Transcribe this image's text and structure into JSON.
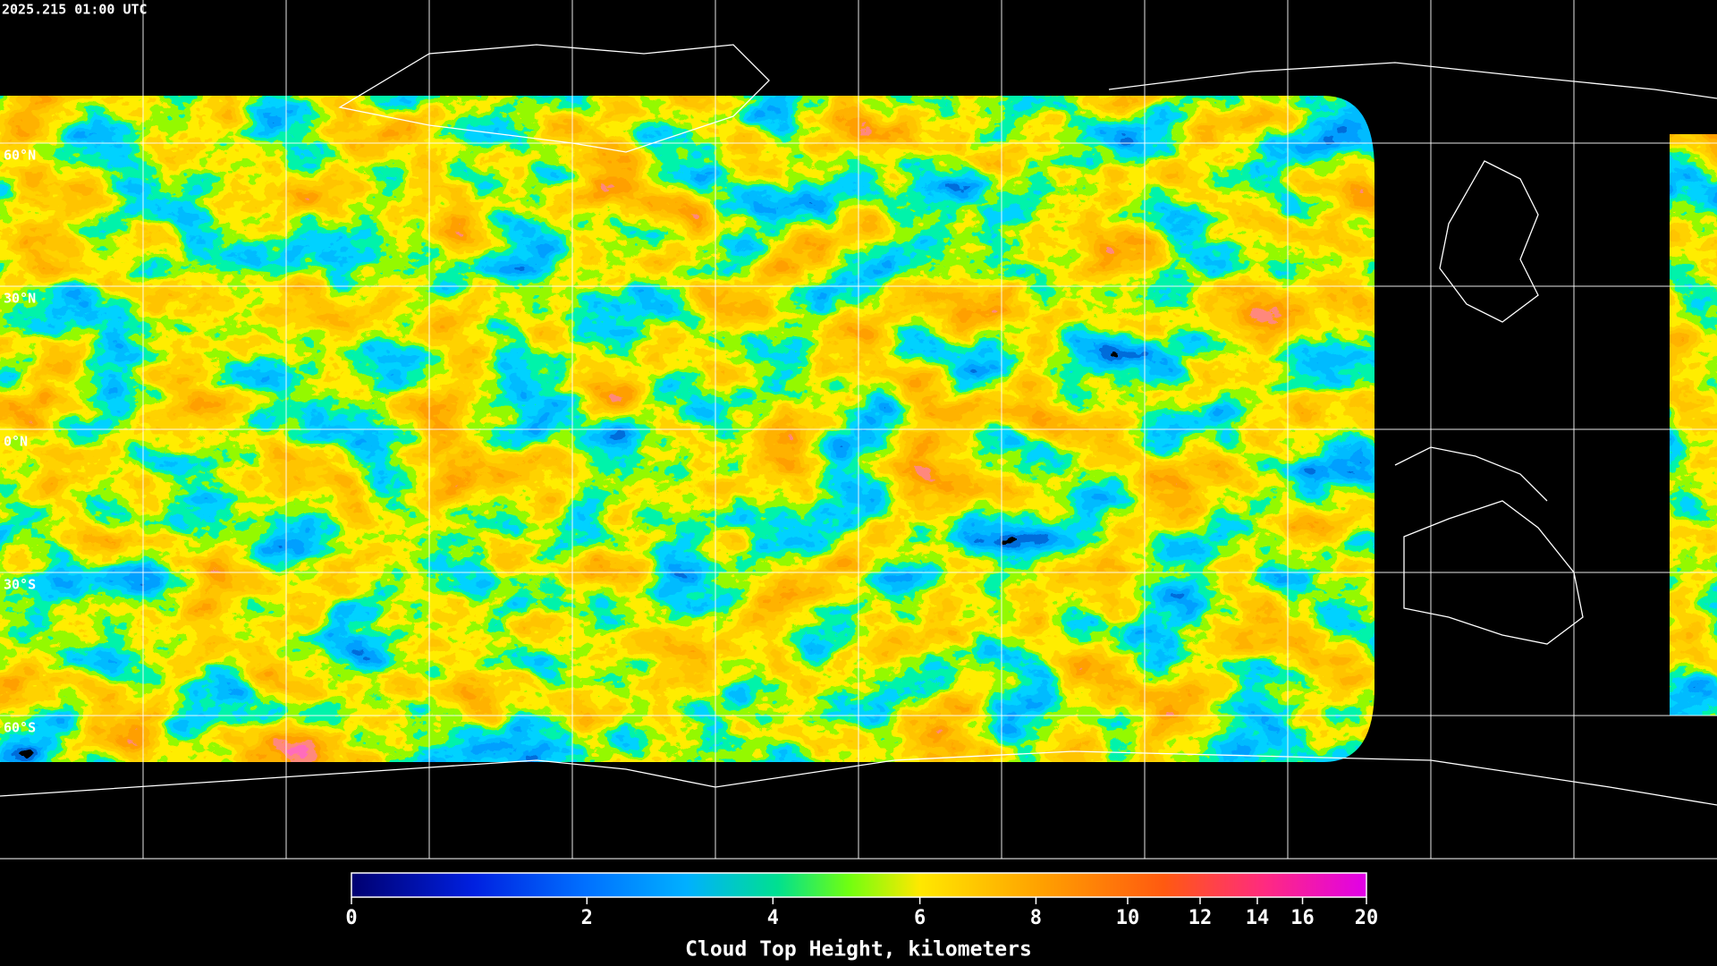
{
  "timestamp": "2025.215 01:00 UTC",
  "latitude_labels": [
    "60°N",
    "30°N",
    "0°N",
    "30°S",
    "60°S"
  ],
  "colorbar": {
    "title": "Cloud Top Height, kilometers",
    "lim": [
      0,
      20
    ],
    "ticks": [
      0,
      2,
      4,
      6,
      8,
      10,
      12,
      14,
      16,
      20
    ]
  }
}
